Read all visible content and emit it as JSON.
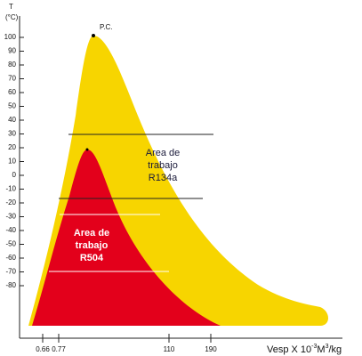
{
  "axis": {
    "y_title": "T",
    "y_unit": "(°C)",
    "y_ticks": [
      100,
      90,
      80,
      70,
      60,
      50,
      40,
      30,
      20,
      10,
      0,
      -10,
      -20,
      -30,
      -40,
      -50,
      -60,
      -70,
      -80
    ],
    "x_ticks": [
      "0.66",
      "0.77",
      "110",
      "190"
    ],
    "x_title": {
      "main": "Vesp X 10",
      "exp1": "-3",
      "mid": "M",
      "exp2": "3",
      "end": "/kg"
    }
  },
  "annotations": {
    "critical_point": "P.C.",
    "r134a": [
      "Area de",
      "trabajo",
      "R134a"
    ],
    "r504": [
      "Area de",
      "trabajo",
      "R504"
    ]
  }
}
